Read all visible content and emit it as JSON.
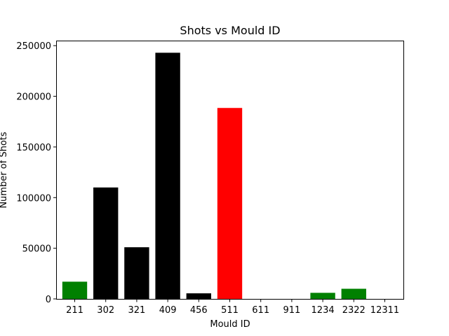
{
  "chart_data": {
    "type": "bar",
    "title": "Shots vs Mould ID",
    "xlabel": "Mould ID",
    "ylabel": "Number of Shots",
    "categories": [
      "211",
      "302",
      "321",
      "409",
      "456",
      "511",
      "611",
      "911",
      "1234",
      "2322",
      "12311"
    ],
    "values": [
      17000,
      110000,
      51000,
      243000,
      5500,
      188500,
      0,
      0,
      6000,
      10000,
      0
    ],
    "bar_colors": [
      "#008000",
      "#000000",
      "#000000",
      "#000000",
      "#000000",
      "#ff0000",
      "#000000",
      "#000000",
      "#008000",
      "#008000",
      "#000000"
    ],
    "yticks": [
      0,
      50000,
      100000,
      150000,
      200000,
      250000
    ],
    "ylim": [
      0,
      255000
    ],
    "grid": false
  }
}
